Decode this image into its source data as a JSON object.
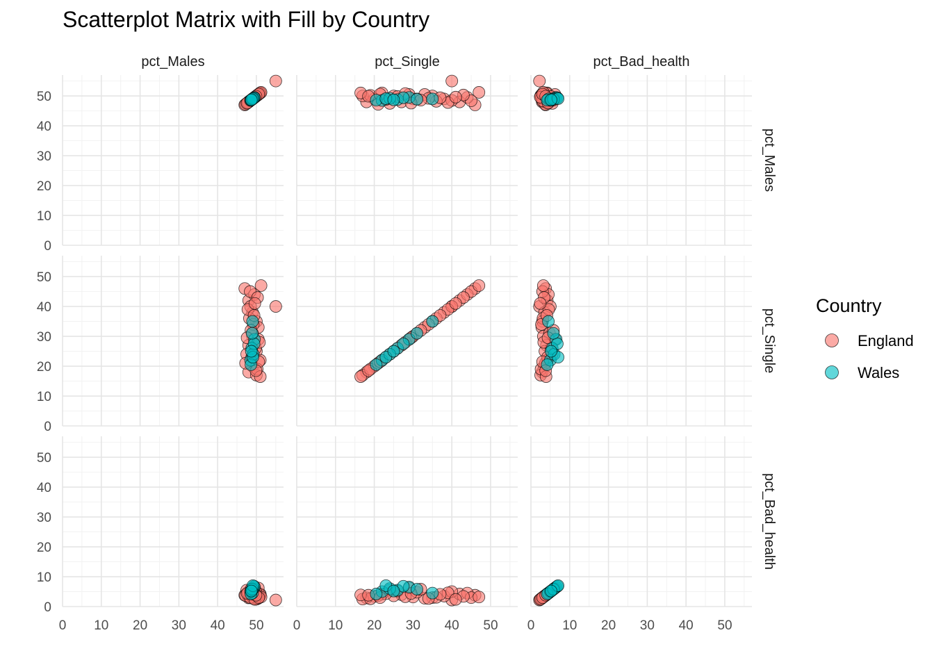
{
  "chart_data": {
    "type": "scatter",
    "title": "Scatterplot Matrix with Fill by Country",
    "variables": [
      "pct_Males",
      "pct_Single",
      "pct_Bad_health"
    ],
    "axis_range": [
      0,
      57
    ],
    "ticks": [
      0,
      10,
      20,
      30,
      40,
      50
    ],
    "legend": {
      "title": "Country",
      "placement": "right",
      "entries": [
        {
          "name": "England",
          "color": "#F8766D"
        },
        {
          "name": "Wales",
          "color": "#00BFC4"
        }
      ]
    },
    "grid": true,
    "series": [
      {
        "name": "England",
        "color": "#F8766D",
        "points": [
          [
            55,
            40,
            2.2
          ],
          [
            47,
            46,
            3.8
          ],
          [
            48,
            42,
            4.2
          ],
          [
            49,
            38,
            3.5
          ],
          [
            50,
            35,
            3.0
          ],
          [
            49.5,
            44,
            4.5
          ],
          [
            48.5,
            40,
            5.0
          ],
          [
            50.5,
            33,
            2.8
          ],
          [
            49,
            30,
            3.2
          ],
          [
            48,
            27,
            4.0
          ],
          [
            50,
            25,
            3.6
          ],
          [
            51,
            22,
            4.2
          ],
          [
            49,
            20,
            3.4
          ],
          [
            48,
            18,
            2.9
          ],
          [
            50,
            17,
            2.5
          ],
          [
            47.5,
            24,
            5.5
          ],
          [
            50.5,
            29,
            6.2
          ],
          [
            49,
            31,
            4.8
          ],
          [
            48.2,
            36,
            3.1
          ],
          [
            50.2,
            19,
            2.6
          ],
          [
            51,
            16.5,
            3.9
          ],
          [
            47.2,
            21,
            3.7
          ],
          [
            49.8,
            26,
            5.2
          ],
          [
            48.8,
            23,
            4.3
          ],
          [
            50.8,
            28,
            3.3
          ],
          [
            49.2,
            34,
            2.7
          ],
          [
            48.4,
            45,
            3.0
          ],
          [
            47.8,
            39,
            4.6
          ],
          [
            50.3,
            43,
            3.4
          ],
          [
            51.2,
            47,
            3.2
          ],
          [
            49.6,
            41,
            2.4
          ],
          [
            48.6,
            32,
            5.8
          ],
          [
            49.4,
            37,
            4.1
          ],
          [
            50.6,
            21.5,
            3.0
          ],
          [
            47.6,
            29.5,
            4.4
          ],
          [
            49.9,
            18.5,
            3.8
          ]
        ]
      },
      {
        "name": "Wales",
        "color": "#00BFC4",
        "points": [
          [
            49,
            35,
            4.5
          ],
          [
            48.5,
            22,
            5.0
          ],
          [
            49.5,
            29,
            6.5
          ],
          [
            48.8,
            26,
            5.5
          ],
          [
            49.2,
            24,
            6.0
          ],
          [
            48.6,
            20.5,
            4.2
          ],
          [
            49.4,
            27.5,
            6.8
          ],
          [
            48.9,
            31,
            5.8
          ],
          [
            49.1,
            23,
            7.0
          ],
          [
            48.7,
            25,
            5.2
          ]
        ]
      }
    ]
  }
}
